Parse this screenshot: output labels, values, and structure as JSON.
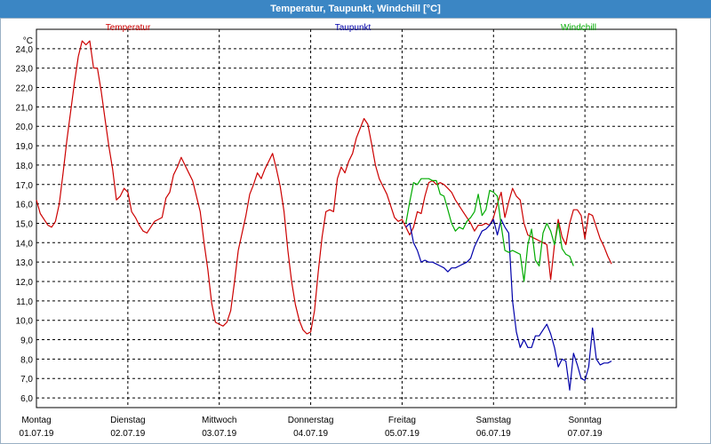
{
  "title": "Temperatur, Taupunkt, Windchill [°C]",
  "chart_data": {
    "type": "line",
    "y_unit_label": "°C",
    "ylim": [
      5.5,
      25.0
    ],
    "y_ticks": [
      "6,0",
      "7,0",
      "8,0",
      "9,0",
      "10,0",
      "11,0",
      "12,0",
      "13,0",
      "14,0",
      "15,0",
      "16,0",
      "17,0",
      "18,0",
      "19,0",
      "20,0",
      "21,0",
      "22,0",
      "23,0",
      "24,0"
    ],
    "x_range_hours": [
      0,
      168
    ],
    "x_ticks": [
      {
        "day": "Montag",
        "date": "01.07.19"
      },
      {
        "day": "Dienstag",
        "date": "02.07.19"
      },
      {
        "day": "Mittwoch",
        "date": "03.07.19"
      },
      {
        "day": "Donnerstag",
        "date": "04.07.19"
      },
      {
        "day": "Freitag",
        "date": "05.07.19"
      },
      {
        "day": "Samstag",
        "date": "06.07.19"
      },
      {
        "day": "Sonntag",
        "date": "07.07.19"
      }
    ],
    "grid": true,
    "series": [
      {
        "name": "Temperatur",
        "color": "#cc0000",
        "points": [
          [
            0,
            16.2
          ],
          [
            1,
            15.5
          ],
          [
            2,
            15.2
          ],
          [
            3,
            14.9
          ],
          [
            4,
            14.8
          ],
          [
            5,
            15.1
          ],
          [
            6,
            16.0
          ],
          [
            7,
            17.6
          ],
          [
            8,
            19.3
          ],
          [
            9,
            20.8
          ],
          [
            10,
            22.3
          ],
          [
            11,
            23.6
          ],
          [
            12,
            24.4
          ],
          [
            13,
            24.2
          ],
          [
            14,
            24.4
          ],
          [
            15,
            23.0
          ],
          [
            16,
            23.0
          ],
          [
            17,
            21.8
          ],
          [
            18,
            20.4
          ],
          [
            19,
            19.0
          ],
          [
            20,
            17.8
          ],
          [
            21,
            16.2
          ],
          [
            22,
            16.4
          ],
          [
            23,
            16.8
          ],
          [
            24,
            16.6
          ],
          [
            25,
            15.6
          ],
          [
            26,
            15.3
          ],
          [
            27,
            14.9
          ],
          [
            28,
            14.6
          ],
          [
            29,
            14.5
          ],
          [
            30,
            14.8
          ],
          [
            31,
            15.1
          ],
          [
            32,
            15.2
          ],
          [
            33,
            15.3
          ],
          [
            34,
            16.3
          ],
          [
            35,
            16.6
          ],
          [
            36,
            17.5
          ],
          [
            37,
            17.9
          ],
          [
            38,
            18.4
          ],
          [
            39,
            18.0
          ],
          [
            40,
            17.6
          ],
          [
            41,
            17.2
          ],
          [
            42,
            16.4
          ],
          [
            43,
            15.6
          ],
          [
            44,
            14.0
          ],
          [
            45,
            12.6
          ],
          [
            46,
            10.9
          ],
          [
            47,
            9.9
          ],
          [
            48,
            9.8
          ],
          [
            49,
            9.7
          ],
          [
            50,
            9.9
          ],
          [
            51,
            10.5
          ],
          [
            52,
            12.0
          ],
          [
            53,
            13.6
          ],
          [
            54,
            14.5
          ],
          [
            55,
            15.4
          ],
          [
            56,
            16.5
          ],
          [
            57,
            17.0
          ],
          [
            58,
            17.6
          ],
          [
            59,
            17.3
          ],
          [
            60,
            17.8
          ],
          [
            61,
            18.2
          ],
          [
            62,
            18.6
          ],
          [
            63,
            17.8
          ],
          [
            64,
            16.9
          ],
          [
            65,
            15.6
          ],
          [
            66,
            13.6
          ],
          [
            67,
            12.0
          ],
          [
            68,
            10.8
          ],
          [
            69,
            10.0
          ],
          [
            70,
            9.5
          ],
          [
            71,
            9.3
          ],
          [
            72,
            9.4
          ],
          [
            73,
            10.5
          ],
          [
            74,
            12.5
          ],
          [
            75,
            14.3
          ],
          [
            76,
            15.6
          ],
          [
            77,
            15.7
          ],
          [
            78,
            15.6
          ],
          [
            79,
            17.3
          ],
          [
            80,
            17.9
          ],
          [
            81,
            17.6
          ],
          [
            82,
            18.2
          ],
          [
            83,
            18.6
          ],
          [
            84,
            19.4
          ],
          [
            85,
            19.9
          ],
          [
            86,
            20.4
          ],
          [
            87,
            20.1
          ],
          [
            88,
            19.1
          ],
          [
            89,
            18.0
          ],
          [
            90,
            17.3
          ],
          [
            91,
            16.9
          ],
          [
            92,
            16.5
          ],
          [
            93,
            15.9
          ],
          [
            94,
            15.3
          ],
          [
            95,
            15.1
          ],
          [
            96,
            15.2
          ],
          [
            97,
            14.8
          ],
          [
            98,
            14.4
          ],
          [
            99,
            14.8
          ],
          [
            100,
            15.6
          ],
          [
            101,
            15.5
          ],
          [
            102,
            16.4
          ],
          [
            103,
            17.1
          ],
          [
            104,
            17.2
          ],
          [
            105,
            17.0
          ],
          [
            106,
            17.1
          ],
          [
            107,
            17.0
          ],
          [
            108,
            16.8
          ],
          [
            109,
            16.6
          ],
          [
            110,
            16.2
          ],
          [
            111,
            15.9
          ],
          [
            112,
            15.6
          ],
          [
            113,
            15.3
          ],
          [
            114,
            15.0
          ],
          [
            115,
            14.6
          ],
          [
            116,
            14.9
          ],
          [
            117,
            14.9
          ],
          [
            118,
            15.0
          ],
          [
            119,
            14.9
          ],
          [
            120,
            15.3
          ],
          [
            121,
            16.0
          ],
          [
            122,
            16.6
          ],
          [
            123,
            15.3
          ],
          [
            124,
            16.1
          ],
          [
            125,
            16.8
          ],
          [
            126,
            16.4
          ],
          [
            127,
            16.2
          ],
          [
            128,
            15.0
          ],
          [
            129,
            14.4
          ],
          [
            130,
            14.3
          ],
          [
            131,
            14.2
          ],
          [
            132,
            14.1
          ],
          [
            133,
            14.0
          ],
          [
            134,
            13.9
          ],
          [
            135,
            12.1
          ],
          [
            136,
            13.9
          ],
          [
            137,
            15.2
          ],
          [
            138,
            14.3
          ],
          [
            139,
            13.9
          ],
          [
            140,
            15.0
          ],
          [
            141,
            15.7
          ],
          [
            142,
            15.7
          ],
          [
            143,
            15.4
          ],
          [
            144,
            14.2
          ],
          [
            145,
            15.5
          ],
          [
            146,
            15.4
          ],
          [
            147,
            14.8
          ],
          [
            148,
            14.2
          ],
          [
            149,
            13.8
          ],
          [
            150,
            13.3
          ],
          [
            151,
            12.9
          ]
        ]
      },
      {
        "name": "Taupunkt",
        "color": "#0000aa",
        "points": [
          [
            97,
            14.8
          ],
          [
            98,
            15.0
          ],
          [
            99,
            14.0
          ],
          [
            100,
            13.6
          ],
          [
            101,
            13.0
          ],
          [
            102,
            13.1
          ],
          [
            103,
            13.0
          ],
          [
            104,
            13.0
          ],
          [
            105,
            12.9
          ],
          [
            106,
            12.8
          ],
          [
            107,
            12.7
          ],
          [
            108,
            12.5
          ],
          [
            109,
            12.7
          ],
          [
            110,
            12.7
          ],
          [
            111,
            12.8
          ],
          [
            112,
            12.9
          ],
          [
            113,
            13.0
          ],
          [
            114,
            13.2
          ],
          [
            115,
            13.8
          ],
          [
            116,
            14.2
          ],
          [
            117,
            14.6
          ],
          [
            118,
            14.7
          ],
          [
            119,
            14.9
          ],
          [
            120,
            15.2
          ],
          [
            121,
            14.4
          ],
          [
            122,
            15.2
          ],
          [
            123,
            14.8
          ],
          [
            124,
            14.5
          ],
          [
            125,
            11.0
          ],
          [
            126,
            9.4
          ],
          [
            127,
            8.6
          ],
          [
            128,
            9.0
          ],
          [
            129,
            8.6
          ],
          [
            130,
            8.6
          ],
          [
            131,
            9.2
          ],
          [
            132,
            9.2
          ],
          [
            133,
            9.5
          ],
          [
            134,
            9.8
          ],
          [
            135,
            9.3
          ],
          [
            136,
            8.6
          ],
          [
            137,
            7.6
          ],
          [
            138,
            8.0
          ],
          [
            139,
            7.9
          ],
          [
            140,
            6.4
          ],
          [
            141,
            8.3
          ],
          [
            142,
            7.7
          ],
          [
            143,
            7.0
          ],
          [
            144,
            6.9
          ],
          [
            145,
            7.6
          ],
          [
            146,
            9.6
          ],
          [
            147,
            8.0
          ],
          [
            148,
            7.7
          ],
          [
            149,
            7.8
          ],
          [
            150,
            7.8
          ],
          [
            151,
            7.9
          ]
        ]
      },
      {
        "name": "Windchill",
        "color": "#00aa00",
        "points": [
          [
            97,
            15.0
          ],
          [
            98,
            16.1
          ],
          [
            99,
            17.1
          ],
          [
            100,
            17.0
          ],
          [
            101,
            17.3
          ],
          [
            102,
            17.3
          ],
          [
            103,
            17.3
          ],
          [
            104,
            17.2
          ],
          [
            105,
            17.2
          ],
          [
            106,
            16.5
          ],
          [
            107,
            16.4
          ],
          [
            108,
            15.7
          ],
          [
            109,
            15.0
          ],
          [
            110,
            14.6
          ],
          [
            111,
            14.8
          ],
          [
            112,
            14.7
          ],
          [
            113,
            15.1
          ],
          [
            114,
            15.3
          ],
          [
            115,
            15.6
          ],
          [
            116,
            16.5
          ],
          [
            117,
            15.4
          ],
          [
            118,
            15.7
          ],
          [
            119,
            16.7
          ],
          [
            120,
            16.6
          ],
          [
            121,
            16.4
          ],
          [
            122,
            14.9
          ],
          [
            123,
            13.6
          ],
          [
            124,
            13.5
          ],
          [
            125,
            13.6
          ],
          [
            126,
            13.5
          ],
          [
            127,
            13.4
          ],
          [
            128,
            12.0
          ],
          [
            129,
            13.9
          ],
          [
            130,
            14.7
          ],
          [
            131,
            13.1
          ],
          [
            132,
            12.8
          ],
          [
            133,
            14.5
          ],
          [
            134,
            15.0
          ],
          [
            135,
            14.6
          ],
          [
            136,
            13.9
          ],
          [
            137,
            15.0
          ],
          [
            138,
            13.7
          ],
          [
            139,
            13.4
          ],
          [
            140,
            13.3
          ],
          [
            141,
            12.8
          ]
        ]
      }
    ]
  }
}
